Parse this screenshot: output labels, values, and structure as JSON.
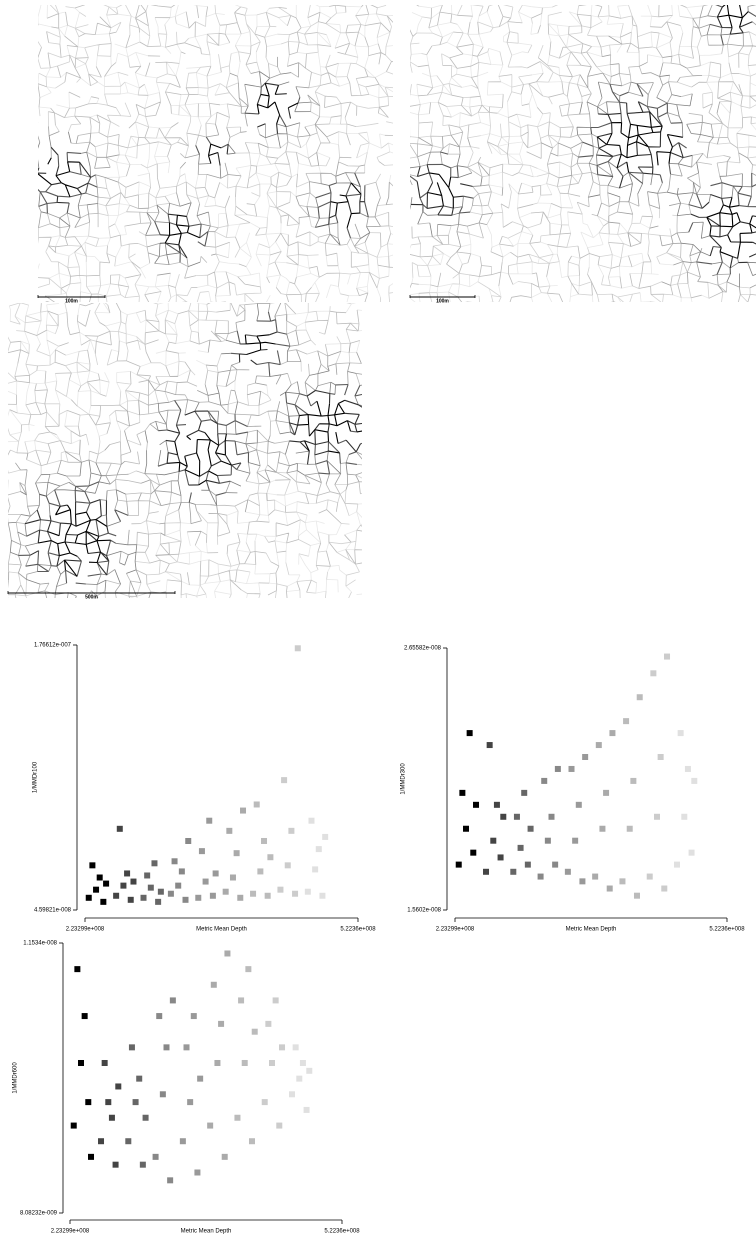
{
  "maps": [
    {
      "scale_label": "100m"
    },
    {
      "scale_label": "100m"
    },
    {
      "scale_label": "500m"
    }
  ],
  "chart_data": [
    {
      "type": "scatter",
      "x_label": "Metric Mean Depth",
      "y_label": "1/MMDr100",
      "xlim": [
        223299000,
        522360000
      ],
      "ylim": [
        4.59821e-08,
        1.76612e-07
      ],
      "xticks": [
        {
          "value": 223299000,
          "label": "2.23299e+008"
        },
        {
          "value": 522360000,
          "label": "5.2236e+008"
        }
      ],
      "yticks": [
        {
          "value": 4.59821e-08,
          "label": "4.59821e-008"
        },
        {
          "value": 1.76612e-07,
          "label": "1.76612e-007"
        }
      ],
      "series": [
        {
          "color": "#000000",
          "x": [
            227400000.0,
            231400000.0,
            235400000.0,
            239400000.0,
            243400000.0,
            246400000.0
          ],
          "values": [
            5.2e-08,
            6.8e-08,
            5.6e-08,
            6.2e-08,
            5e-08,
            5.9e-08
          ]
        },
        {
          "color": "#444444",
          "x": [
            257400000.0,
            261400000.0,
            265400000.0,
            269400000.0,
            273400000.0,
            276400000.0
          ],
          "values": [
            5.3e-08,
            8.6e-08,
            5.8e-08,
            6.4e-08,
            5.1e-08,
            6e-08
          ]
        },
        {
          "color": "#666666",
          "x": [
            287400000.0,
            291400000.0,
            295400000.0,
            299400000.0,
            303400000.0,
            306400000.0
          ],
          "values": [
            5.2e-08,
            6.3e-08,
            5.7e-08,
            6.9e-08,
            5e-08,
            5.5e-08
          ]
        },
        {
          "color": "#888888",
          "x": [
            317400000.0,
            321400000.0,
            325400000.0,
            329400000.0,
            333400000.0,
            336400000.0
          ],
          "values": [
            5.4e-08,
            7e-08,
            5.8e-08,
            6.5e-08,
            5.1e-08,
            8e-08
          ]
        },
        {
          "color": "#999999",
          "x": [
            347400000.0,
            351400000.0,
            355400000.0,
            359400000.0,
            363400000.0,
            366400000.0
          ],
          "values": [
            5.2e-08,
            7.5e-08,
            6e-08,
            9e-08,
            5.3e-08,
            6.4e-08
          ]
        },
        {
          "color": "#aaaaaa",
          "x": [
            377400000.0,
            381400000.0,
            385400000.0,
            389400000.0,
            393400000.0,
            396400000.0
          ],
          "values": [
            5.5e-08,
            8.5e-08,
            6.2e-08,
            7.4e-08,
            5.2e-08,
            9.5e-08
          ]
        },
        {
          "color": "#bbbbbb",
          "x": [
            407400000.0,
            411400000.0,
            415400000.0,
            419400000.0,
            423400000.0,
            426400000.0
          ],
          "values": [
            5.4e-08,
            9.8e-08,
            6.5e-08,
            8e-08,
            5.3e-08,
            7.2e-08
          ]
        },
        {
          "color": "#cccccc",
          "x": [
            437400000.0,
            441400000.0,
            445400000.0,
            449400000.0,
            453400000.0,
            456400000.0
          ],
          "values": [
            5.6e-08,
            1.1e-07,
            6.8e-08,
            8.5e-08,
            5.4e-08,
            1.75e-07
          ]
        },
        {
          "color": "#e0e0e0",
          "x": [
            467400000.0,
            471400000.0,
            475400000.0,
            479400000.0,
            483400000.0,
            486400000.0
          ],
          "values": [
            5.5e-08,
            9e-08,
            6.6e-08,
            7.6e-08,
            5.3e-08,
            8.2e-08
          ]
        }
      ]
    },
    {
      "type": "scatter",
      "x_label": "Metric Mean Depth",
      "y_label": "1/MMDr300",
      "xlim": [
        223299000,
        522360000
      ],
      "ylim": [
        1.5602e-08,
        2.65582e-08
      ],
      "xticks": [
        {
          "value": 223299000,
          "label": "2.23299e+008"
        },
        {
          "value": 522360000,
          "label": "5.2236e+008"
        }
      ],
      "yticks": [
        {
          "value": 1.5602e-08,
          "label": "1.5602e-008"
        },
        {
          "value": 2.65582e-08,
          "label": "2.65582e-008"
        }
      ],
      "series": [
        {
          "color": "#000000",
          "x": [
            227400000.0,
            231400000.0,
            235400000.0,
            239400000.0,
            243400000.0,
            246400000.0
          ],
          "values": [
            1.75e-08,
            2.05e-08,
            1.9e-08,
            2.3e-08,
            1.8e-08,
            2e-08
          ]
        },
        {
          "color": "#444444",
          "x": [
            257400000.0,
            261400000.0,
            265400000.0,
            269400000.0,
            273400000.0,
            276400000.0
          ],
          "values": [
            1.72e-08,
            2.25e-08,
            1.85e-08,
            2e-08,
            1.78e-08,
            1.95e-08
          ]
        },
        {
          "color": "#666666",
          "x": [
            287400000.0,
            291400000.0,
            295400000.0,
            299400000.0,
            303400000.0,
            306400000.0
          ],
          "values": [
            1.72e-08,
            1.95e-08,
            1.82e-08,
            2.05e-08,
            1.75e-08,
            1.9e-08
          ]
        },
        {
          "color": "#888888",
          "x": [
            317400000.0,
            321400000.0,
            325400000.0,
            329400000.0,
            333400000.0,
            336400000.0
          ],
          "values": [
            1.7e-08,
            2.1e-08,
            1.85e-08,
            1.95e-08,
            1.75e-08,
            2.15e-08
          ]
        },
        {
          "color": "#999999",
          "x": [
            347400000.0,
            351400000.0,
            355400000.0,
            359400000.0,
            363400000.0,
            366400000.0
          ],
          "values": [
            1.72e-08,
            2.15e-08,
            1.85e-08,
            2e-08,
            1.68e-08,
            2.2e-08
          ]
        },
        {
          "color": "#aaaaaa",
          "x": [
            377400000.0,
            381400000.0,
            385400000.0,
            389400000.0,
            393400000.0,
            396400000.0
          ],
          "values": [
            1.7e-08,
            2.25e-08,
            1.9e-08,
            2.05e-08,
            1.65e-08,
            2.3e-08
          ]
        },
        {
          "color": "#bbbbbb",
          "x": [
            407400000.0,
            411400000.0,
            415400000.0,
            419400000.0,
            423400000.0,
            426400000.0
          ],
          "values": [
            1.68e-08,
            2.35e-08,
            1.9e-08,
            2.1e-08,
            1.62e-08,
            2.45e-08
          ]
        },
        {
          "color": "#cccccc",
          "x": [
            437400000.0,
            441400000.0,
            445400000.0,
            449400000.0,
            453400000.0,
            456400000.0
          ],
          "values": [
            1.7e-08,
            2.55e-08,
            1.95e-08,
            2.2e-08,
            1.65e-08,
            2.62e-08
          ]
        },
        {
          "color": "#e0e0e0",
          "x": [
            467400000.0,
            471400000.0,
            475400000.0,
            479400000.0,
            483400000.0,
            486400000.0
          ],
          "values": [
            1.75e-08,
            2.3e-08,
            1.95e-08,
            2.15e-08,
            1.8e-08,
            2.1e-08
          ]
        }
      ]
    },
    {
      "type": "scatter",
      "x_label": "Metric Mean Depth",
      "y_label": "1/MMDr600",
      "xlim": [
        223299000,
        522360000
      ],
      "ylim": [
        8.08232e-09,
        1.1534e-08
      ],
      "xticks": [
        {
          "value": 223299000,
          "label": "2.23299e+008"
        },
        {
          "value": 522360000,
          "label": "5.2236e+008"
        }
      ],
      "yticks": [
        {
          "value": 8.08232e-09,
          "label": "8.08232e-009"
        },
        {
          "value": 1.1534e-08,
          "label": "1.1534e-008"
        }
      ],
      "series": [
        {
          "color": "#000000",
          "x": [
            227400000.0,
            231400000.0,
            235400000.0,
            239400000.0,
            243400000.0,
            246400000.0
          ],
          "values": [
            9.2e-09,
            1.12e-08,
            1e-08,
            1.06e-08,
            9.5e-09,
            8.8e-09
          ]
        },
        {
          "color": "#444444",
          "x": [
            257400000.0,
            261400000.0,
            265400000.0,
            269400000.0,
            273400000.0,
            276400000.0
          ],
          "values": [
            9e-09,
            1e-08,
            9.5e-09,
            9.3e-09,
            8.7e-09,
            9.7e-09
          ]
        },
        {
          "color": "#666666",
          "x": [
            287400000.0,
            291400000.0,
            295400000.0,
            299400000.0,
            303400000.0,
            306400000.0
          ],
          "values": [
            9e-09,
            1.02e-08,
            9.5e-09,
            9.8e-09,
            8.7e-09,
            9.3e-09
          ]
        },
        {
          "color": "#888888",
          "x": [
            317400000.0,
            321400000.0,
            325400000.0,
            329400000.0,
            333400000.0,
            336400000.0
          ],
          "values": [
            8.8e-09,
            1.06e-08,
            9.6e-09,
            1.02e-08,
            8.5e-09,
            1.08e-08
          ]
        },
        {
          "color": "#999999",
          "x": [
            347400000.0,
            351400000.0,
            355400000.0,
            359400000.0,
            363400000.0,
            366400000.0
          ],
          "values": [
            9e-09,
            1.02e-08,
            9.5e-09,
            1.06e-08,
            8.6e-09,
            9.8e-09
          ]
        },
        {
          "color": "#aaaaaa",
          "x": [
            377400000.0,
            381400000.0,
            385400000.0,
            389400000.0,
            393400000.0,
            396400000.0
          ],
          "values": [
            9.2e-09,
            1.1e-08,
            1e-08,
            1.05e-08,
            8.8e-09,
            1.14e-08
          ]
        },
        {
          "color": "#bbbbbb",
          "x": [
            407400000.0,
            411400000.0,
            415400000.0,
            419400000.0,
            423400000.0,
            426400000.0
          ],
          "values": [
            9.3e-09,
            1.08e-08,
            1e-08,
            1.12e-08,
            9e-09,
            1.04e-08
          ]
        },
        {
          "color": "#cccccc",
          "x": [
            437400000.0,
            441400000.0,
            445400000.0,
            449400000.0,
            453400000.0,
            456400000.0
          ],
          "values": [
            9.5e-09,
            1.05e-08,
            1e-08,
            1.08e-08,
            9.2e-09,
            1.02e-08
          ]
        },
        {
          "color": "#e0e0e0",
          "x": [
            467400000.0,
            471400000.0,
            475400000.0,
            479400000.0,
            483400000.0,
            486400000.0
          ],
          "values": [
            9.6e-09,
            1.02e-08,
            9.8e-09,
            1e-08,
            9.4e-09,
            9.9e-09
          ]
        }
      ]
    }
  ]
}
